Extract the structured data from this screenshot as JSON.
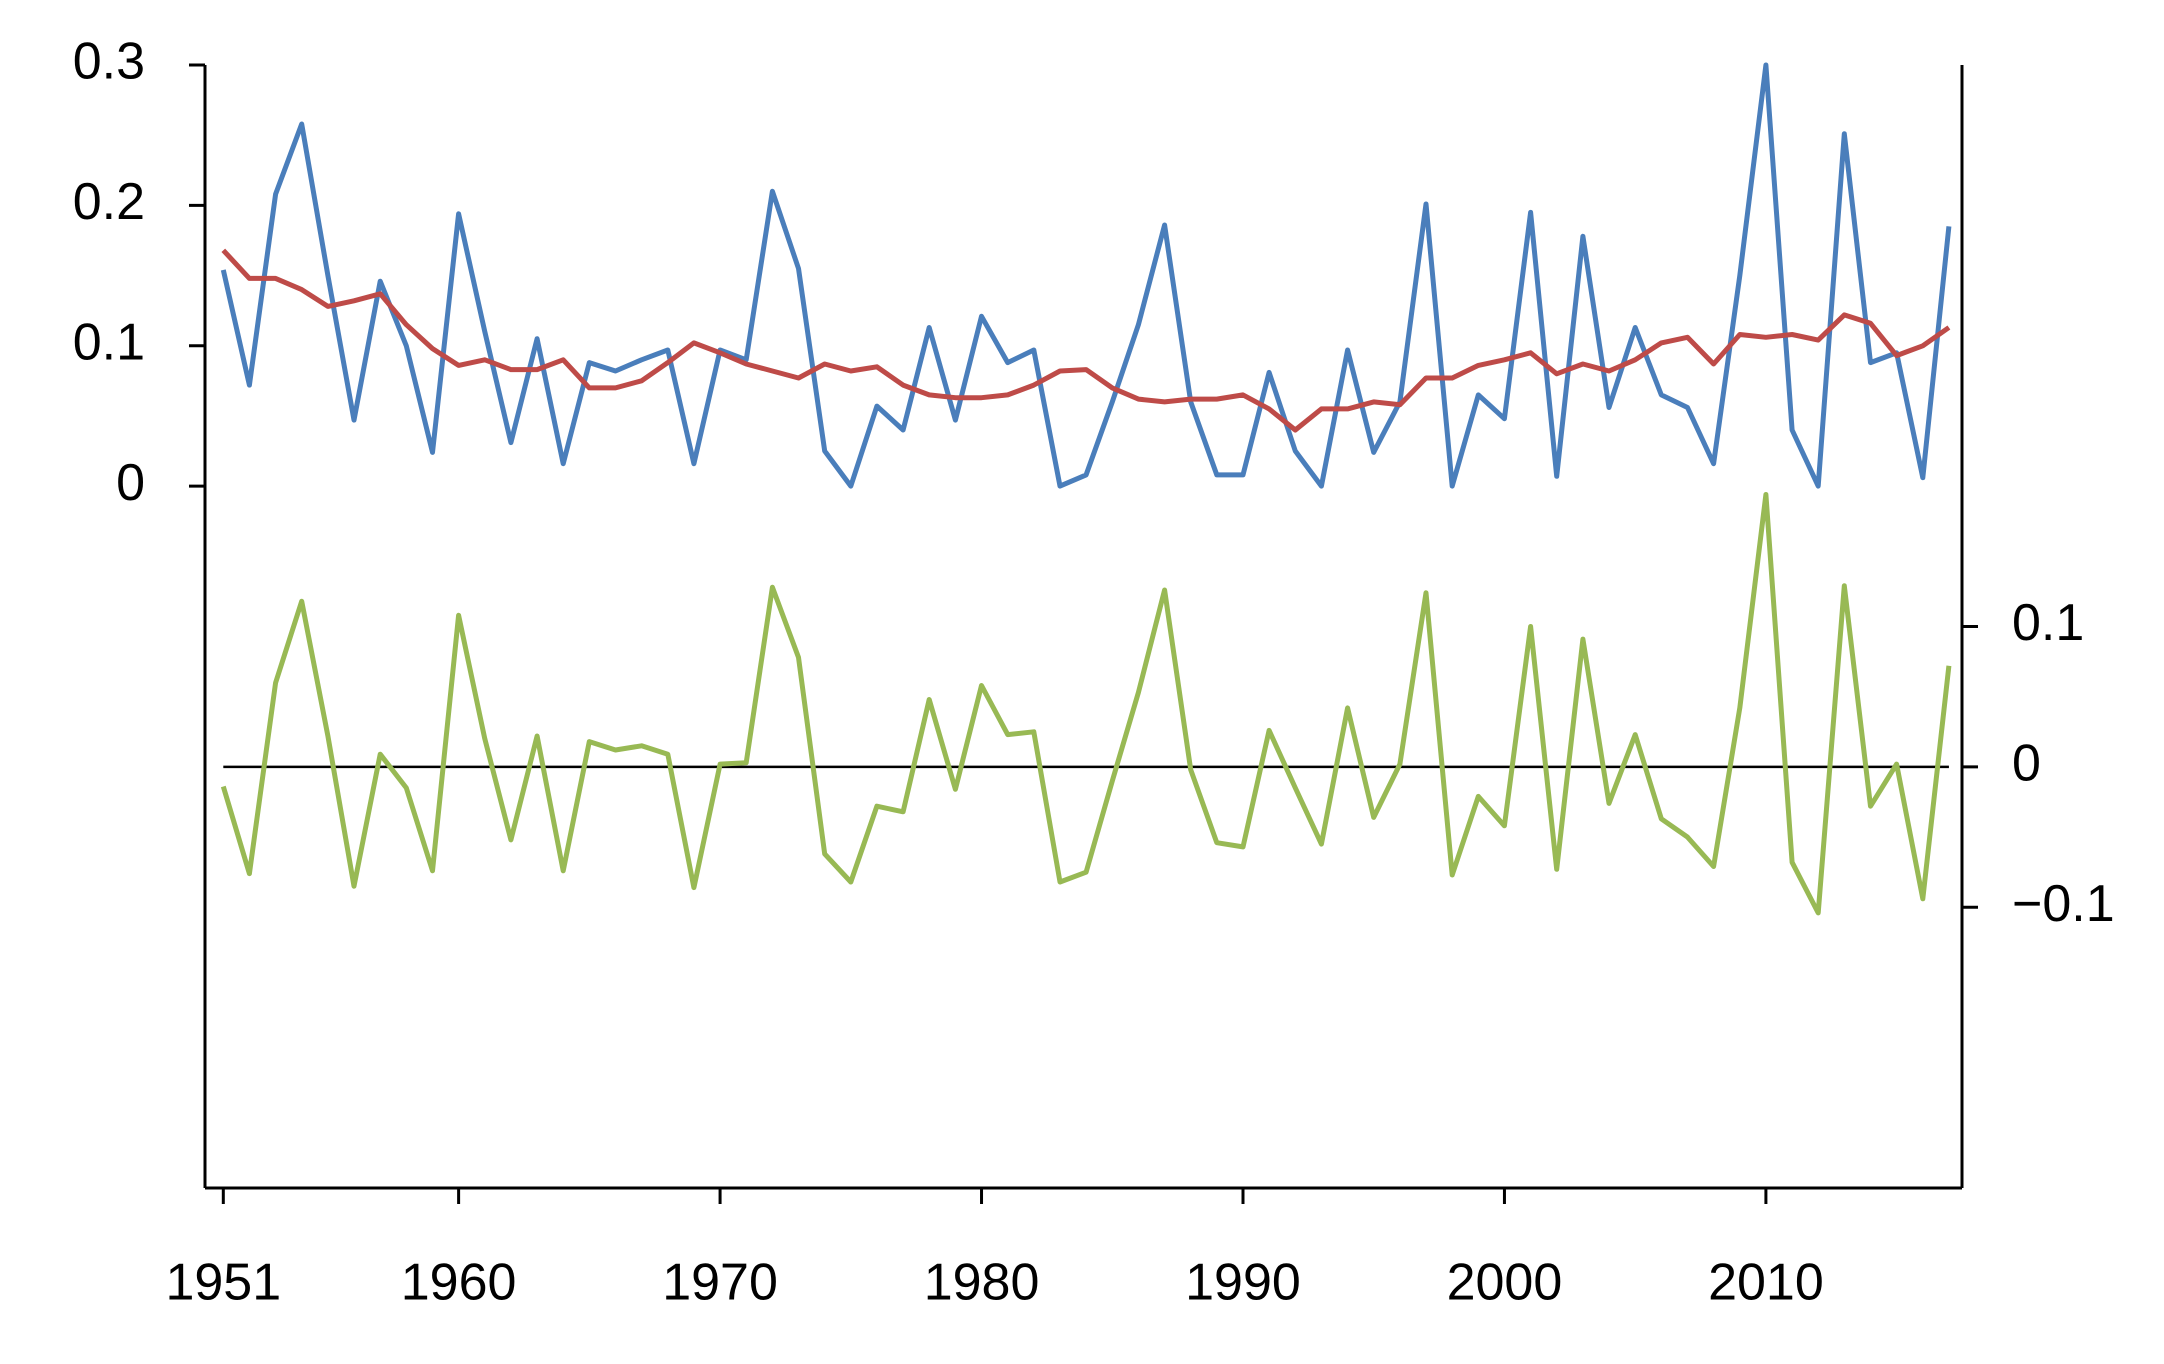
{
  "chart_data": {
    "type": "line",
    "x": [
      1951,
      1952,
      1953,
      1954,
      1955,
      1956,
      1957,
      1958,
      1959,
      1960,
      1961,
      1962,
      1963,
      1964,
      1965,
      1966,
      1967,
      1968,
      1969,
      1970,
      1971,
      1972,
      1973,
      1974,
      1975,
      1976,
      1977,
      1978,
      1979,
      1980,
      1981,
      1982,
      1983,
      1984,
      1985,
      1986,
      1987,
      1988,
      1989,
      1990,
      1991,
      1992,
      1993,
      1994,
      1995,
      1996,
      1997,
      1998,
      1999,
      2000,
      2001,
      2002,
      2003,
      2004,
      2005,
      2006,
      2007,
      2008,
      2009,
      2010,
      2011,
      2012,
      2013,
      2014,
      2015,
      2016,
      2017
    ],
    "series": [
      {
        "color": "#4a7ebb",
        "values": [
          0.154,
          0.072,
          0.208,
          0.258,
          0.15,
          0.047,
          0.146,
          0.1,
          0.024,
          0.194,
          0.11,
          0.031,
          0.105,
          0.016,
          0.088,
          0.082,
          0.09,
          0.097,
          0.016,
          0.097,
          0.09,
          0.21,
          0.155,
          0.025,
          0.0,
          0.057,
          0.04,
          0.113,
          0.047,
          0.121,
          0.088,
          0.097,
          0.0,
          0.008,
          0.06,
          0.115,
          0.186,
          0.06,
          0.008,
          0.008,
          0.081,
          0.025,
          0.0,
          0.097,
          0.024,
          0.06,
          0.201,
          0.0,
          0.065,
          0.048,
          0.195,
          0.007,
          0.178,
          0.056,
          0.113,
          0.065,
          0.056,
          0.016,
          0.15,
          0.3,
          0.04,
          0.0,
          0.251,
          0.088,
          0.095,
          0.006,
          0.185
        ]
      },
      {
        "color": "#be4b48",
        "values": [
          0.168,
          0.148,
          0.148,
          0.14,
          0.128,
          0.132,
          0.137,
          0.115,
          0.098,
          0.086,
          0.09,
          0.083,
          0.083,
          0.09,
          0.07,
          0.07,
          0.075,
          0.088,
          0.102,
          0.095,
          0.087,
          0.082,
          0.077,
          0.087,
          0.082,
          0.085,
          0.072,
          0.065,
          0.063,
          0.063,
          0.065,
          0.072,
          0.082,
          0.083,
          0.07,
          0.062,
          0.06,
          0.062,
          0.062,
          0.065,
          0.055,
          0.04,
          0.055,
          0.055,
          0.06,
          0.058,
          0.077,
          0.077,
          0.086,
          0.09,
          0.095,
          0.08,
          0.087,
          0.082,
          0.09,
          0.102,
          0.106,
          0.087,
          0.108,
          0.106,
          0.108,
          0.104,
          0.122,
          0.116,
          0.093,
          0.1,
          0.113
        ]
      },
      {
        "color": "#98b954",
        "axis": "y2",
        "values": [
          -0.014,
          -0.076,
          0.06,
          0.118,
          0.022,
          -0.085,
          0.009,
          -0.015,
          -0.074,
          0.108,
          0.02,
          -0.052,
          0.022,
          -0.074,
          0.018,
          0.012,
          0.015,
          0.009,
          -0.086,
          0.002,
          0.003,
          0.128,
          0.078,
          -0.062,
          -0.082,
          -0.028,
          -0.032,
          0.048,
          -0.016,
          0.058,
          0.023,
          0.025,
          -0.082,
          -0.075,
          -0.01,
          0.053,
          0.126,
          -0.002,
          -0.054,
          -0.057,
          0.026,
          -0.015,
          -0.055,
          0.042,
          -0.036,
          0.002,
          0.124,
          -0.077,
          -0.021,
          -0.042,
          0.1,
          -0.073,
          0.091,
          -0.026,
          0.023,
          -0.037,
          -0.05,
          -0.071,
          0.042,
          0.194,
          -0.068,
          -0.104,
          0.129,
          -0.028,
          0.002,
          -0.094,
          0.072
        ]
      }
    ],
    "xlim": [
      1950.3,
      2017.5
    ],
    "xticks": [
      1951,
      1960,
      1970,
      1980,
      1990,
      2000,
      2010
    ],
    "ylim": [
      -0.5,
      0.3
    ],
    "yticks": [
      0,
      0.1,
      0.2,
      0.3
    ],
    "y2lim": [
      -0.3,
      0.5
    ],
    "y2ticks": [
      {
        "value": -0.1,
        "label": "−0.1"
      },
      0,
      0.1
    ],
    "y2_zero_line": true
  }
}
